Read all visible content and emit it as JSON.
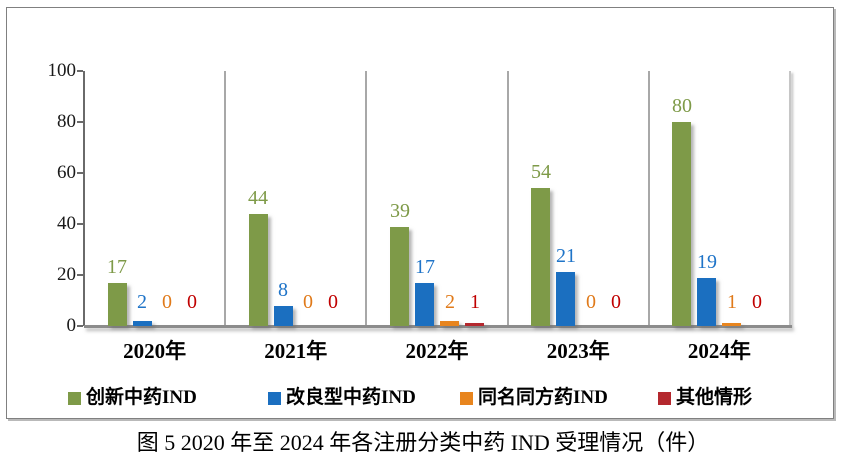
{
  "figure": {
    "caption": "图 5  2020 年至 2024 年各注册分类中药 IND 受理情况（件）"
  },
  "chart_data": {
    "type": "bar",
    "title": "",
    "xlabel": "",
    "ylabel": "",
    "categories": [
      "2020年",
      "2021年",
      "2022年",
      "2023年",
      "2024年"
    ],
    "series": [
      {
        "name": "创新中药IND",
        "color": "#7e9a48",
        "label_color": "#7e9a48",
        "values": [
          17,
          44,
          39,
          54,
          80
        ]
      },
      {
        "name": "改良型中药IND",
        "color": "#1b6fc0",
        "label_color": "#1f74c8",
        "values": [
          2,
          8,
          17,
          21,
          19
        ]
      },
      {
        "name": "同名同方药IND",
        "color": "#e8851e",
        "label_color": "#e07a1a",
        "values": [
          0,
          0,
          2,
          0,
          1
        ]
      },
      {
        "name": "其他情形",
        "color": "#b4282e",
        "label_color": "#c00000",
        "values": [
          0,
          0,
          1,
          0,
          0
        ]
      }
    ],
    "ylim": [
      0,
      100
    ],
    "yticks": [
      0,
      20,
      40,
      60,
      80,
      100
    ],
    "grid": "vertical category separators only",
    "legend_position": "bottom",
    "data_labels": "above bars, colored per series"
  }
}
